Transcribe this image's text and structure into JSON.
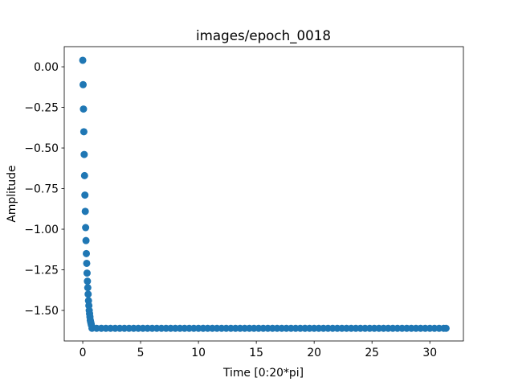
{
  "chart_data": {
    "type": "scatter",
    "title": "images/epoch_0018",
    "xlabel": "Time [0:20*pi]",
    "ylabel": "Amplitude",
    "color": "#1f77b4",
    "x": [
      0,
      0.031,
      0.062,
      0.093,
      0.124,
      0.155,
      0.186,
      0.217,
      0.248,
      0.279,
      0.31,
      0.341,
      0.372,
      0.403,
      0.434,
      0.465,
      0.496,
      0.527,
      0.558,
      0.589,
      0.62,
      0.651,
      0.682,
      0.713,
      0.744,
      0.8,
      1.2,
      1.6,
      2.0,
      2.4,
      2.8,
      3.2,
      3.6,
      4.0,
      4.4,
      4.8,
      5.2,
      5.6,
      6.0,
      6.4,
      6.8,
      7.2,
      7.6,
      8.0,
      8.4,
      8.8,
      9.2,
      9.6,
      10.0,
      10.4,
      10.8,
      11.2,
      11.6,
      12.0,
      12.4,
      12.8,
      13.2,
      13.6,
      14.0,
      14.4,
      14.8,
      15.2,
      15.6,
      16.0,
      16.4,
      16.8,
      17.2,
      17.6,
      18.0,
      18.4,
      18.8,
      19.2,
      19.6,
      20.0,
      20.4,
      20.8,
      21.2,
      21.6,
      22.0,
      22.4,
      22.8,
      23.2,
      23.6,
      24.0,
      24.4,
      24.8,
      25.2,
      25.6,
      26.0,
      26.4,
      26.8,
      27.2,
      27.6,
      28.0,
      28.4,
      28.8,
      29.2,
      29.6,
      30.0,
      30.4,
      30.8,
      31.2,
      31.4
    ],
    "values": [
      0.04,
      -0.11,
      -0.26,
      -0.4,
      -0.54,
      -0.67,
      -0.79,
      -0.89,
      -0.99,
      -1.07,
      -1.15,
      -1.21,
      -1.27,
      -1.32,
      -1.36,
      -1.4,
      -1.44,
      -1.47,
      -1.5,
      -1.52,
      -1.54,
      -1.56,
      -1.57,
      -1.58,
      -1.59,
      -1.61,
      -1.61,
      -1.61,
      -1.61,
      -1.61,
      -1.61,
      -1.61,
      -1.61,
      -1.61,
      -1.61,
      -1.61,
      -1.61,
      -1.61,
      -1.61,
      -1.61,
      -1.61,
      -1.61,
      -1.61,
      -1.61,
      -1.61,
      -1.61,
      -1.61,
      -1.61,
      -1.61,
      -1.61,
      -1.61,
      -1.61,
      -1.61,
      -1.61,
      -1.61,
      -1.61,
      -1.61,
      -1.61,
      -1.61,
      -1.61,
      -1.61,
      -1.61,
      -1.61,
      -1.61,
      -1.61,
      -1.61,
      -1.61,
      -1.61,
      -1.61,
      -1.61,
      -1.61,
      -1.61,
      -1.61,
      -1.61,
      -1.61,
      -1.61,
      -1.61,
      -1.61,
      -1.61,
      -1.61,
      -1.61,
      -1.61,
      -1.61,
      -1.61,
      -1.61,
      -1.61,
      -1.61,
      -1.61,
      -1.61,
      -1.61,
      -1.61,
      -1.61,
      -1.61,
      -1.61,
      -1.61,
      -1.61,
      -1.61,
      -1.61,
      -1.61,
      -1.61,
      -1.61,
      -1.61,
      -1.61
    ],
    "xlim": [
      -1.6,
      32.9
    ],
    "ylim": [
      -1.688,
      0.124
    ],
    "xticks": [
      0,
      5,
      10,
      15,
      20,
      25,
      30
    ],
    "yticks": [
      {
        "value": 0,
        "label": "0.00"
      },
      {
        "value": -0.25,
        "label": "−0.25"
      },
      {
        "value": -0.5,
        "label": "−0.50"
      },
      {
        "value": -0.75,
        "label": "−0.75"
      },
      {
        "value": -1,
        "label": "−1.00"
      },
      {
        "value": -1.25,
        "label": "−1.25"
      },
      {
        "value": -1.5,
        "label": "−1.50"
      }
    ],
    "grid": false
  }
}
